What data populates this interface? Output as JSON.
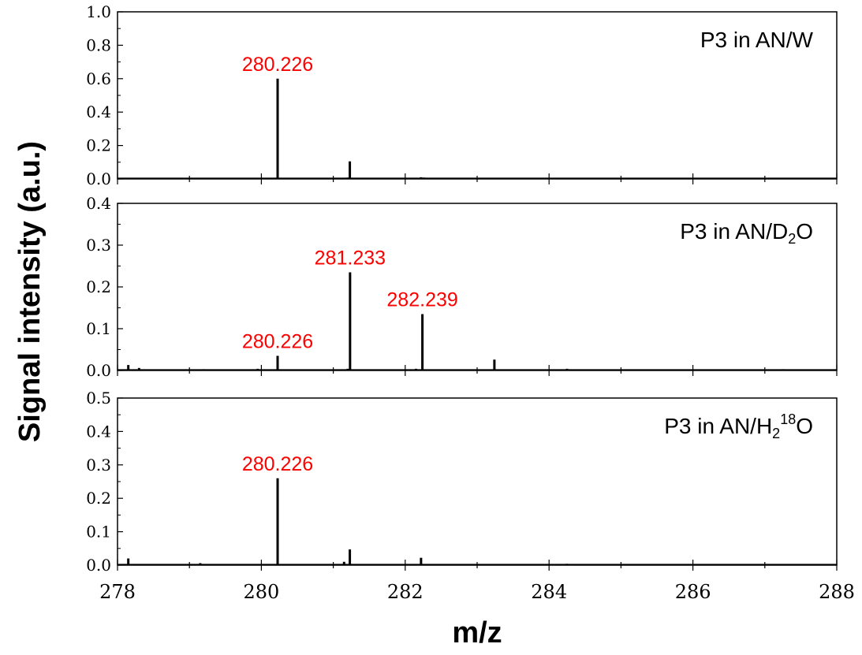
{
  "chart_data": {
    "type": "multi-panel stick spectrum",
    "xlabel": "m/z",
    "ylabel": "Signal intensity (a.u.)",
    "xlim": [
      278,
      288
    ],
    "x_ticks": [
      "278",
      "280",
      "282",
      "284",
      "286",
      "288"
    ],
    "colors": {
      "peak_label": "#ff0000",
      "stick": "#000000"
    },
    "panels": [
      {
        "title": "P3 in AN/W",
        "ylim": [
          0,
          1.0
        ],
        "y_ticks": [
          "0.0",
          "0.2",
          "0.4",
          "0.6",
          "0.8",
          "1.0"
        ],
        "peaks": [
          {
            "x": 278.2,
            "y": 0.005
          },
          {
            "x": 279.15,
            "y": 0.006
          },
          {
            "x": 280.226,
            "y": 0.6
          },
          {
            "x": 281.2,
            "y": 0.008
          },
          {
            "x": 281.23,
            "y": 0.105
          },
          {
            "x": 282.22,
            "y": 0.01
          },
          {
            "x": 282.26,
            "y": 0.008
          },
          {
            "x": 283.2,
            "y": 0.003
          },
          {
            "x": 284.25,
            "y": 0.006
          },
          {
            "x": 286.2,
            "y": 0.004
          }
        ],
        "labels": [
          {
            "text": "280.226",
            "x": 280.226,
            "y": 0.6
          }
        ]
      },
      {
        "title": "P3 in AN/D",
        "title_sub": "2",
        "title_tail": "O",
        "ylim": [
          0,
          0.4
        ],
        "y_ticks": [
          "0.0",
          "0.1",
          "0.2",
          "0.3",
          "0.4"
        ],
        "peaks": [
          {
            "x": 278.15,
            "y": 0.013
          },
          {
            "x": 278.3,
            "y": 0.006
          },
          {
            "x": 279.2,
            "y": 0.003
          },
          {
            "x": 279.95,
            "y": 0.004
          },
          {
            "x": 280.226,
            "y": 0.035
          },
          {
            "x": 281.2,
            "y": 0.004
          },
          {
            "x": 281.233,
            "y": 0.235
          },
          {
            "x": 282.15,
            "y": 0.004
          },
          {
            "x": 282.239,
            "y": 0.135
          },
          {
            "x": 283.24,
            "y": 0.026
          },
          {
            "x": 284.25,
            "y": 0.004
          },
          {
            "x": 287.25,
            "y": 0.003
          }
        ],
        "labels": [
          {
            "text": "280.226",
            "x": 280.226,
            "y": 0.035
          },
          {
            "text": "281.233",
            "x": 281.233,
            "y": 0.235
          },
          {
            "text": "282.239",
            "x": 282.239,
            "y": 0.135
          }
        ]
      },
      {
        "title": "P3 in AN/H",
        "title_sub": "2",
        "title_sup": "18",
        "title_tail": "O",
        "ylim": [
          0,
          0.5
        ],
        "y_ticks": [
          "0.0",
          "0.1",
          "0.2",
          "0.3",
          "0.4",
          "0.5"
        ],
        "peaks": [
          {
            "x": 278.15,
            "y": 0.02
          },
          {
            "x": 279.15,
            "y": 0.006
          },
          {
            "x": 280.226,
            "y": 0.26
          },
          {
            "x": 281.15,
            "y": 0.01
          },
          {
            "x": 281.23,
            "y": 0.047
          },
          {
            "x": 282.22,
            "y": 0.022
          },
          {
            "x": 283.2,
            "y": 0.003
          },
          {
            "x": 284.25,
            "y": 0.004
          }
        ],
        "labels": [
          {
            "text": "280.226",
            "x": 280.226,
            "y": 0.26
          }
        ]
      }
    ]
  }
}
